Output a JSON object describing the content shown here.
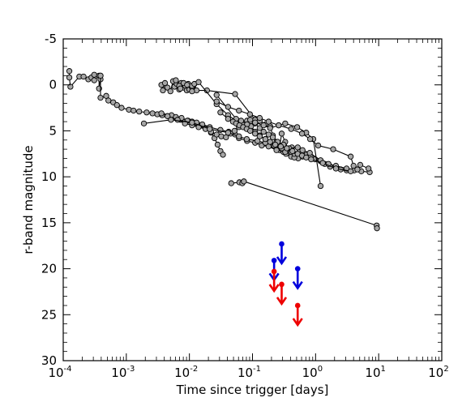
{
  "chart_data": {
    "type": "scatter",
    "title": "",
    "xlabel": "Time since trigger [days]",
    "ylabel": "r-band magnitude",
    "xscale": "log",
    "xlim": [
      0.0001,
      100
    ],
    "ylim": [
      30,
      -5
    ],
    "y_inverted": true,
    "grid": false,
    "legend": "none",
    "x_ticks": [
      {
        "base": "10",
        "exp": "-4",
        "value": 0.0001
      },
      {
        "base": "10",
        "exp": "-3",
        "value": 0.001
      },
      {
        "base": "10",
        "exp": "-2",
        "value": 0.01
      },
      {
        "base": "10",
        "exp": "-1",
        "value": 0.1
      },
      {
        "base": "10",
        "exp": "0",
        "value": 1
      },
      {
        "base": "10",
        "exp": "1",
        "value": 10
      },
      {
        "base": "10",
        "exp": "2",
        "value": 100
      }
    ],
    "y_ticks": [
      "-5",
      "0",
      "5",
      "10",
      "15",
      "20",
      "25",
      "30"
    ],
    "colors": {
      "lightcurve_marker": "#a6a6a6",
      "lightcurve_line": "#000000",
      "upper_limit_blue": "#0000dd",
      "upper_limit_red": "#ee0000"
    },
    "series": [
      {
        "points": [
          [
            0.000125,
            -1.5
          ],
          [
            0.000125,
            -0.8
          ],
          [
            0.00013,
            0.2
          ],
          [
            0.00018,
            -0.9
          ],
          [
            0.00021,
            -0.9
          ],
          [
            0.00025,
            -0.6
          ],
          [
            0.00028,
            -0.8
          ],
          [
            0.00031,
            -1.1
          ],
          [
            0.00031,
            -0.5
          ],
          [
            0.00037,
            -1.0
          ],
          [
            0.00037,
            0.4
          ],
          [
            0.00039,
            -1.0
          ],
          [
            0.00039,
            -0.6
          ]
        ]
      },
      {
        "points": [
          [
            0.00039,
            -1.0
          ],
          [
            0.00039,
            1.4
          ],
          [
            0.00048,
            1.2
          ],
          [
            0.00052,
            1.7
          ],
          [
            0.00062,
            1.9
          ],
          [
            0.00071,
            2.2
          ],
          [
            0.00084,
            2.5
          ],
          [
            0.0011,
            2.7
          ],
          [
            0.0013,
            2.8
          ],
          [
            0.0016,
            2.9
          ],
          [
            0.0021,
            3.0
          ],
          [
            0.0026,
            3.1
          ],
          [
            0.0031,
            3.2
          ],
          [
            0.0037,
            3.3
          ],
          [
            0.0045,
            3.4
          ],
          [
            0.0055,
            3.5
          ],
          [
            0.0062,
            3.6
          ],
          [
            0.0072,
            3.8
          ],
          [
            0.0085,
            4.0
          ],
          [
            0.0095,
            3.9
          ],
          [
            0.011,
            4.1
          ],
          [
            0.013,
            4.2
          ],
          [
            0.015,
            4.4
          ],
          [
            0.018,
            4.7
          ],
          [
            0.022,
            5.2
          ],
          [
            0.025,
            5.8
          ],
          [
            0.028,
            6.5
          ],
          [
            0.031,
            7.2
          ],
          [
            0.034,
            7.6
          ]
        ]
      },
      {
        "points": [
          [
            0.0036,
            0.0
          ],
          [
            0.0038,
            0.6
          ],
          [
            0.0041,
            -0.2
          ],
          [
            0.0045,
            0.3
          ],
          [
            0.005,
            0.7
          ],
          [
            0.0055,
            -0.4
          ],
          [
            0.0058,
            0.2
          ],
          [
            0.0063,
            -0.1
          ],
          [
            0.0069,
            0.5
          ],
          [
            0.0074,
            -0.2
          ],
          [
            0.0081,
            0.3
          ],
          [
            0.0086,
            0.1
          ],
          [
            0.0091,
            0.6
          ],
          [
            0.0096,
            -0.1
          ],
          [
            0.01,
            0.5
          ],
          [
            0.011,
            0.1
          ],
          [
            0.012,
            -0.1
          ],
          [
            0.013,
            0.6
          ],
          [
            0.019,
            0.6
          ],
          [
            0.053,
            1.0
          ],
          [
            0.11,
            3.8
          ],
          [
            0.13,
            3.9
          ],
          [
            0.16,
            4.3
          ],
          [
            0.19,
            4.5
          ],
          [
            0.21,
            5.5
          ],
          [
            0.24,
            6.2
          ],
          [
            0.27,
            6.7
          ],
          [
            0.29,
            5.3
          ],
          [
            0.33,
            6.2
          ],
          [
            0.38,
            7.2
          ],
          [
            0.42,
            6.8
          ],
          [
            0.53,
            8.0
          ]
        ]
      },
      {
        "points": [
          [
            0.0061,
            -0.5
          ],
          [
            0.0069,
            0.1
          ],
          [
            0.0072,
            0.4
          ],
          [
            0.0081,
            -0.2
          ],
          [
            0.0092,
            0.0
          ],
          [
            0.011,
            0.7
          ],
          [
            0.014,
            -0.3
          ],
          [
            0.027,
            2.1
          ],
          [
            0.041,
            3.3
          ],
          [
            0.061,
            4.1
          ],
          [
            0.078,
            4.3
          ],
          [
            0.095,
            4.5
          ],
          [
            0.11,
            5.1
          ],
          [
            0.13,
            5.5
          ],
          [
            0.16,
            5.9
          ],
          [
            0.19,
            6.3
          ],
          [
            0.22,
            6.6
          ],
          [
            0.27,
            7.1
          ],
          [
            0.31,
            7.3
          ],
          [
            0.34,
            7.5
          ],
          [
            0.41,
            7.8
          ],
          [
            0.46,
            7.9
          ]
        ]
      },
      {
        "points": [
          [
            0.0036,
            3.1
          ],
          [
            0.0052,
            3.3
          ],
          [
            0.0061,
            3.5
          ],
          [
            0.0075,
            3.6
          ],
          [
            0.0093,
            3.9
          ],
          [
            0.011,
            4.0
          ],
          [
            0.013,
            4.1
          ],
          [
            0.016,
            4.3
          ],
          [
            0.021,
            4.6
          ],
          [
            0.031,
            4.9
          ],
          [
            0.042,
            5.1
          ],
          [
            0.053,
            5.4
          ],
          [
            0.061,
            5.8
          ],
          [
            0.082,
            6.1
          ],
          [
            0.11,
            6.3
          ],
          [
            0.14,
            6.6
          ],
          [
            0.18,
            6.7
          ],
          [
            0.24,
            7.1
          ],
          [
            0.33,
            7.3
          ],
          [
            0.46,
            7.5
          ],
          [
            0.55,
            7.3
          ],
          [
            0.61,
            7.5
          ],
          [
            0.72,
            7.6
          ],
          [
            0.83,
            7.8
          ],
          [
            0.98,
            8.1
          ],
          [
            1.2,
            8.3
          ],
          [
            1.4,
            8.6
          ],
          [
            1.7,
            8.9
          ],
          [
            2.1,
            9.0
          ],
          [
            2.5,
            9.2
          ],
          [
            3.1,
            9.3
          ]
        ]
      },
      {
        "points": [
          [
            0.0045,
            3.4
          ],
          [
            0.0065,
            3.8
          ],
          [
            0.0085,
            4.2
          ],
          [
            0.011,
            4.4
          ],
          [
            0.014,
            4.6
          ],
          [
            0.018,
            4.8
          ],
          [
            0.022,
            5.1
          ],
          [
            0.027,
            5.4
          ],
          [
            0.032,
            5.6
          ],
          [
            0.038,
            5.7
          ],
          [
            0.045,
            5.3
          ],
          [
            0.052,
            5.0
          ],
          [
            0.061,
            4.6
          ],
          [
            0.071,
            4.2
          ],
          [
            0.082,
            3.9
          ],
          [
            0.092,
            3.8
          ],
          [
            0.11,
            4.2
          ],
          [
            0.13,
            4.7
          ],
          [
            0.15,
            5.1
          ],
          [
            0.18,
            5.4
          ],
          [
            0.21,
            5.7
          ],
          [
            0.25,
            6.2
          ],
          [
            0.31,
            6.5
          ],
          [
            0.38,
            6.9
          ],
          [
            0.52,
            6.8
          ],
          [
            0.62,
            7.1
          ],
          [
            0.81,
            7.4
          ],
          [
            1.2,
            8.2
          ],
          [
            1.6,
            8.6
          ],
          [
            2.1,
            8.8
          ],
          [
            3.1,
            9.1
          ],
          [
            4.1,
            9.3
          ],
          [
            5.3,
            9.4
          ],
          [
            7.2,
            9.5
          ]
        ]
      },
      {
        "points": [
          [
            0.0019,
            4.2
          ],
          [
            0.0051,
            3.8
          ],
          [
            0.011,
            4.1
          ],
          [
            0.021,
            4.8
          ],
          [
            0.041,
            5.2
          ],
          [
            0.061,
            5.6
          ],
          [
            0.081,
            5.9
          ],
          [
            0.12,
            6.1
          ],
          [
            0.16,
            6.3
          ],
          [
            0.22,
            6.6
          ],
          [
            0.29,
            6.9
          ],
          [
            0.41,
            7.3
          ],
          [
            0.62,
            7.8
          ],
          [
            1.3,
            8.5
          ],
          [
            2.1,
            9.1
          ],
          [
            3.6,
            9.4
          ]
        ]
      },
      {
        "points": [
          [
            0.027,
            1.1
          ],
          [
            0.055,
            3.7
          ],
          [
            0.066,
            3.9
          ],
          [
            0.082,
            4.3
          ],
          [
            0.11,
            4.1
          ],
          [
            0.15,
            4.4
          ],
          [
            0.19,
            4.7
          ],
          [
            0.26,
            4.4
          ],
          [
            0.33,
            4.2
          ],
          [
            0.51,
            4.6
          ],
          [
            0.71,
            5.2
          ],
          [
            0.92,
            5.9
          ],
          [
            1.2,
            11.0
          ]
        ]
      },
      {
        "points": [
          [
            0.027,
            1.8
          ],
          [
            0.041,
            2.4
          ],
          [
            0.061,
            2.8
          ],
          [
            0.091,
            3.2
          ],
          [
            0.13,
            3.6
          ],
          [
            0.18,
            4.0
          ],
          [
            0.26,
            4.4
          ],
          [
            0.41,
            4.8
          ],
          [
            0.61,
            5.3
          ],
          [
            0.82,
            5.9
          ],
          [
            1.1,
            6.6
          ],
          [
            1.9,
            7.0
          ],
          [
            3.6,
            7.8
          ],
          [
            4.0,
            8.8
          ],
          [
            4.6,
            9.2
          ],
          [
            5.1,
            8.7
          ],
          [
            6.9,
            9.1
          ]
        ]
      },
      {
        "points": [
          [
            0.031,
            3.0
          ],
          [
            0.041,
            3.7
          ],
          [
            0.049,
            4.0
          ],
          [
            0.055,
            4.2
          ],
          [
            0.062,
            4.4
          ],
          [
            0.071,
            4.6
          ],
          [
            0.081,
            4.8
          ],
          [
            0.092,
            5.0
          ],
          [
            0.11,
            5.3
          ],
          [
            0.13,
            5.6
          ],
          [
            0.16,
            5.9
          ],
          [
            0.19,
            6.2
          ],
          [
            0.23,
            6.5
          ],
          [
            0.28,
            6.7
          ],
          [
            0.35,
            6.9
          ],
          [
            0.43,
            7.2
          ],
          [
            0.52,
            7.5
          ],
          [
            0.61,
            7.7
          ],
          [
            0.71,
            7.9
          ],
          [
            0.85,
            8.1
          ]
        ]
      },
      {
        "points": [
          [
            0.046,
            10.7
          ],
          [
            0.062,
            10.6
          ],
          [
            0.069,
            10.7
          ],
          [
            0.073,
            10.5
          ],
          [
            9.3,
            15.3
          ],
          [
            9.4,
            15.6
          ]
        ]
      }
    ],
    "upper_limits": [
      {
        "x": 0.29,
        "y": 17.3,
        "color": "blue"
      },
      {
        "x": 0.22,
        "y": 19.1,
        "color": "blue"
      },
      {
        "x": 0.52,
        "y": 20.0,
        "color": "blue"
      },
      {
        "x": 0.22,
        "y": 20.3,
        "color": "red"
      },
      {
        "x": 0.29,
        "y": 21.7,
        "color": "red"
      },
      {
        "x": 0.52,
        "y": 24.0,
        "color": "red"
      }
    ]
  }
}
